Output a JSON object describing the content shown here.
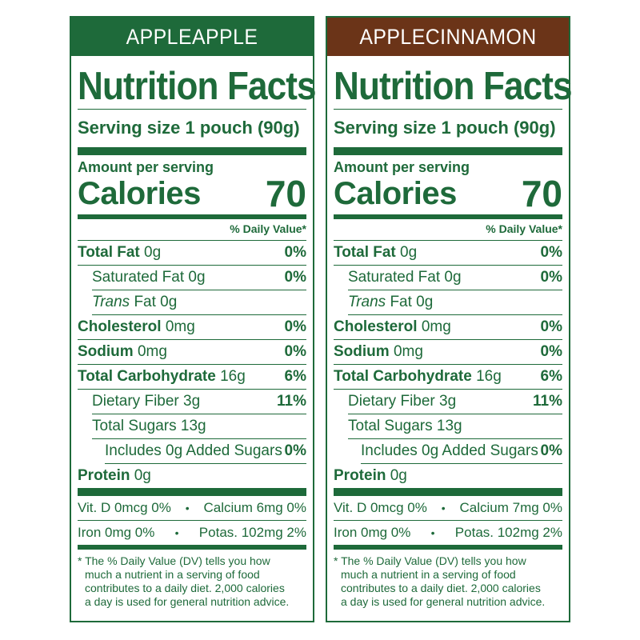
{
  "panels": [
    {
      "flavor": "APPLEAPPLE",
      "title": "Nutrition Facts",
      "serving": "Serving size 1 pouch (90g)",
      "amount_label": "Amount per serving",
      "calories_label": "Calories",
      "calories_value": "70",
      "dv_header": "% Daily Value*",
      "total_fat": {
        "label": "Total Fat",
        "amount": "0g",
        "pct": "0%"
      },
      "sat_fat": {
        "label": "Saturated Fat 0g",
        "pct": "0%"
      },
      "trans_fat": {
        "label": "Trans",
        "amount": "Fat 0g"
      },
      "cholesterol": {
        "label": "Cholesterol",
        "amount": "0mg",
        "pct": "0%"
      },
      "sodium": {
        "label": "Sodium",
        "amount": "0mg",
        "pct": "0%"
      },
      "carb": {
        "label": "Total Carbohydrate",
        "amount": "16g",
        "pct": "6%"
      },
      "fiber": {
        "label": "Dietary Fiber 3g",
        "pct": "11%"
      },
      "sugars": {
        "label": "Total Sugars 13g"
      },
      "added_sugars": {
        "label": "Includes 0g Added Sugars",
        "pct": "0%"
      },
      "protein": {
        "label": "Protein",
        "amount": "0g"
      },
      "vit_d": "Vit. D 0mcg 0%",
      "calcium": "Calcium 6mg 0%",
      "iron": "Iron 0mg 0%",
      "potassium": "Potas. 102mg 2%",
      "bullet": "•",
      "footnote": [
        "* The % Daily Value (DV) tells you how",
        "much a nutrient in a serving of food",
        "contributes to a daily diet. 2,000 calories",
        "a day is used for general nutrition advice."
      ],
      "header_color": "#1e6a3a"
    },
    {
      "flavor": "APPLECINNAMON",
      "title": "Nutrition Facts",
      "serving": "Serving size 1 pouch (90g)",
      "amount_label": "Amount per serving",
      "calories_label": "Calories",
      "calories_value": "70",
      "dv_header": "% Daily Value*",
      "total_fat": {
        "label": "Total Fat",
        "amount": "0g",
        "pct": "0%"
      },
      "sat_fat": {
        "label": "Saturated Fat 0g",
        "pct": "0%"
      },
      "trans_fat": {
        "label": "Trans",
        "amount": "Fat 0g"
      },
      "cholesterol": {
        "label": "Cholesterol",
        "amount": "0mg",
        "pct": "0%"
      },
      "sodium": {
        "label": "Sodium",
        "amount": "0mg",
        "pct": "0%"
      },
      "carb": {
        "label": "Total Carbohydrate",
        "amount": "16g",
        "pct": "6%"
      },
      "fiber": {
        "label": "Dietary Fiber 3g",
        "pct": "11%"
      },
      "sugars": {
        "label": "Total Sugars 13g"
      },
      "added_sugars": {
        "label": "Includes 0g Added Sugars",
        "pct": "0%"
      },
      "protein": {
        "label": "Protein",
        "amount": "0g"
      },
      "vit_d": "Vit. D 0mcg 0%",
      "calcium": "Calcium 7mg 0%",
      "iron": "Iron 0mg 0%",
      "potassium": "Potas. 102mg 2%",
      "bullet": "•",
      "footnote": [
        "* The % Daily Value (DV) tells you how",
        "much a nutrient in a serving of food",
        "contributes to a daily diet. 2,000 calories",
        "a day is used for general nutrition advice."
      ],
      "header_color": "#6b3418"
    }
  ],
  "text_color": "#1e6a3a"
}
